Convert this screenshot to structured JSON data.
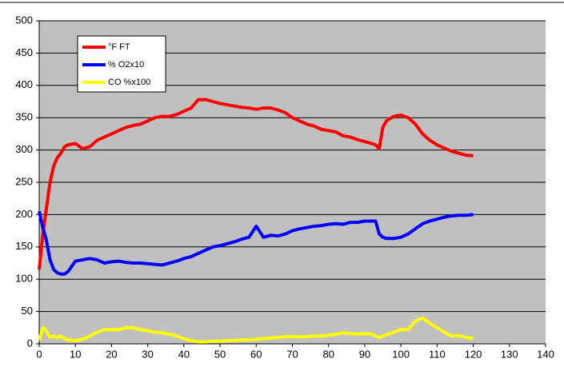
{
  "chart_data": {
    "type": "line",
    "x": [
      0,
      1,
      2,
      3,
      4,
      5,
      6,
      7,
      8,
      10,
      12,
      14,
      16,
      18,
      20,
      22,
      24,
      26,
      28,
      30,
      32,
      34,
      36,
      38,
      40,
      42,
      44,
      46,
      48,
      50,
      52,
      54,
      56,
      58,
      60,
      62,
      64,
      66,
      68,
      70,
      72,
      74,
      76,
      78,
      80,
      82,
      84,
      86,
      88,
      90,
      92,
      93,
      94,
      95,
      96,
      98,
      100,
      102,
      104,
      106,
      108,
      110,
      112,
      114,
      116,
      118,
      120
    ],
    "series": [
      {
        "name": "°F FT",
        "color": "#ff0000",
        "values": [
          115,
          170,
          210,
          250,
          275,
          288,
          295,
          305,
          308,
          310,
          302,
          305,
          315,
          320,
          325,
          330,
          335,
          338,
          340,
          345,
          350,
          352,
          352,
          355,
          360,
          365,
          378,
          378,
          375,
          372,
          370,
          368,
          366,
          365,
          363,
          365,
          365,
          362,
          358,
          350,
          345,
          340,
          337,
          332,
          330,
          328,
          322,
          320,
          316,
          313,
          310,
          308,
          302,
          335,
          345,
          352,
          354,
          350,
          340,
          325,
          315,
          308,
          303,
          298,
          295,
          292,
          291
        ]
      },
      {
        "name": "% O2x10",
        "color": "#0000ff",
        "values": [
          205,
          180,
          160,
          130,
          115,
          110,
          108,
          108,
          112,
          128,
          130,
          132,
          130,
          125,
          127,
          128,
          126,
          125,
          125,
          124,
          123,
          122,
          125,
          128,
          132,
          135,
          140,
          145,
          150,
          152,
          155,
          158,
          162,
          165,
          182,
          165,
          168,
          167,
          170,
          175,
          178,
          180,
          182,
          183,
          185,
          186,
          185,
          188,
          188,
          190,
          190,
          190,
          170,
          165,
          163,
          163,
          165,
          170,
          178,
          186,
          190,
          193,
          196,
          198,
          199,
          199,
          200
        ]
      },
      {
        "name": "CO %x100",
        "color": "#ffff00",
        "values": [
          5,
          25,
          20,
          10,
          12,
          10,
          12,
          8,
          6,
          5,
          7,
          12,
          18,
          22,
          22,
          22,
          25,
          25,
          22,
          20,
          18,
          17,
          15,
          12,
          8,
          5,
          3,
          3,
          4,
          4,
          5,
          5,
          6,
          6,
          7,
          8,
          9,
          10,
          11,
          11,
          11,
          11,
          12,
          12,
          13,
          15,
          17,
          16,
          15,
          16,
          15,
          12,
          10,
          12,
          14,
          18,
          22,
          22,
          35,
          40,
          32,
          25,
          18,
          12,
          13,
          10,
          8
        ]
      }
    ],
    "xlim": [
      0,
      140
    ],
    "xticks": [
      0,
      10,
      20,
      30,
      40,
      50,
      60,
      70,
      80,
      90,
      100,
      110,
      120,
      130,
      140
    ],
    "ylim": [
      0,
      500
    ],
    "yticks": [
      0,
      50,
      100,
      150,
      200,
      250,
      300,
      350,
      400,
      450,
      500
    ],
    "grid": true,
    "legend": "upper left",
    "background": "#c0c0c0"
  }
}
